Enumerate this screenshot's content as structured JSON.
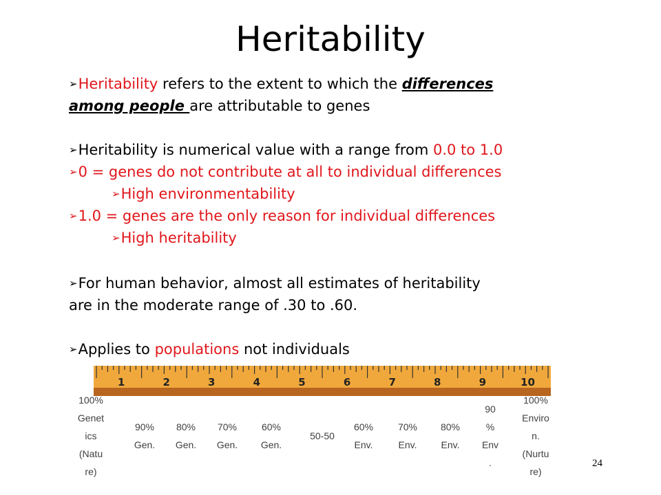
{
  "slide": {
    "title": "Heritability",
    "page_number": "24",
    "bullets": {
      "b1_term": "Heritability",
      "b1_mid": " refers to the extent to which the ",
      "b1_emph1": "differences",
      "b1_emph2": "among people ",
      "b1_end": "are attributable to genes",
      "b2_text": "Heritability is numerical value with a range from ",
      "b2_range": "0.0 to 1.0",
      "b3": "0 = genes do not contribute at all to individual differences",
      "b3_sub": "High environmentability",
      "b4": "1.0  = genes are the only reason for individual differences",
      "b4_sub": "High heritability",
      "b5_line1": "For human behavior, almost all estimates of heritability",
      "b5_line2": "are in the moderate range of .30 to .60.",
      "b6_start": "Applies to ",
      "b6_red": "populations",
      "b6_end": " not individuals"
    },
    "ruler_numbers": [
      "1",
      "2",
      "3",
      "4",
      "5",
      "6",
      "7",
      "8",
      "9",
      "10"
    ],
    "scale": [
      {
        "lines": [
          "100%",
          "Genet",
          "ics",
          "(Natu",
          "re)"
        ]
      },
      {
        "lines": [
          "90%",
          "Gen."
        ]
      },
      {
        "lines": [
          "80%",
          "Gen."
        ]
      },
      {
        "lines": [
          "70%",
          "Gen."
        ]
      },
      {
        "lines": [
          "60%",
          "Gen."
        ]
      },
      {
        "lines": [
          "50-50"
        ]
      },
      {
        "lines": [
          "60%",
          "Env."
        ]
      },
      {
        "lines": [
          "70%",
          "Env."
        ]
      },
      {
        "lines": [
          "80%",
          "Env."
        ]
      },
      {
        "lines": [
          "90",
          "%",
          "Env",
          "."
        ]
      },
      {
        "lines": [
          "100%",
          "Enviro",
          "n.",
          "(Nurtu",
          "re)"
        ]
      }
    ],
    "colors": {
      "accent_red": "#e0161b",
      "ruler_wood": "#f0a83c",
      "ruler_bar": "#b8651f"
    }
  }
}
